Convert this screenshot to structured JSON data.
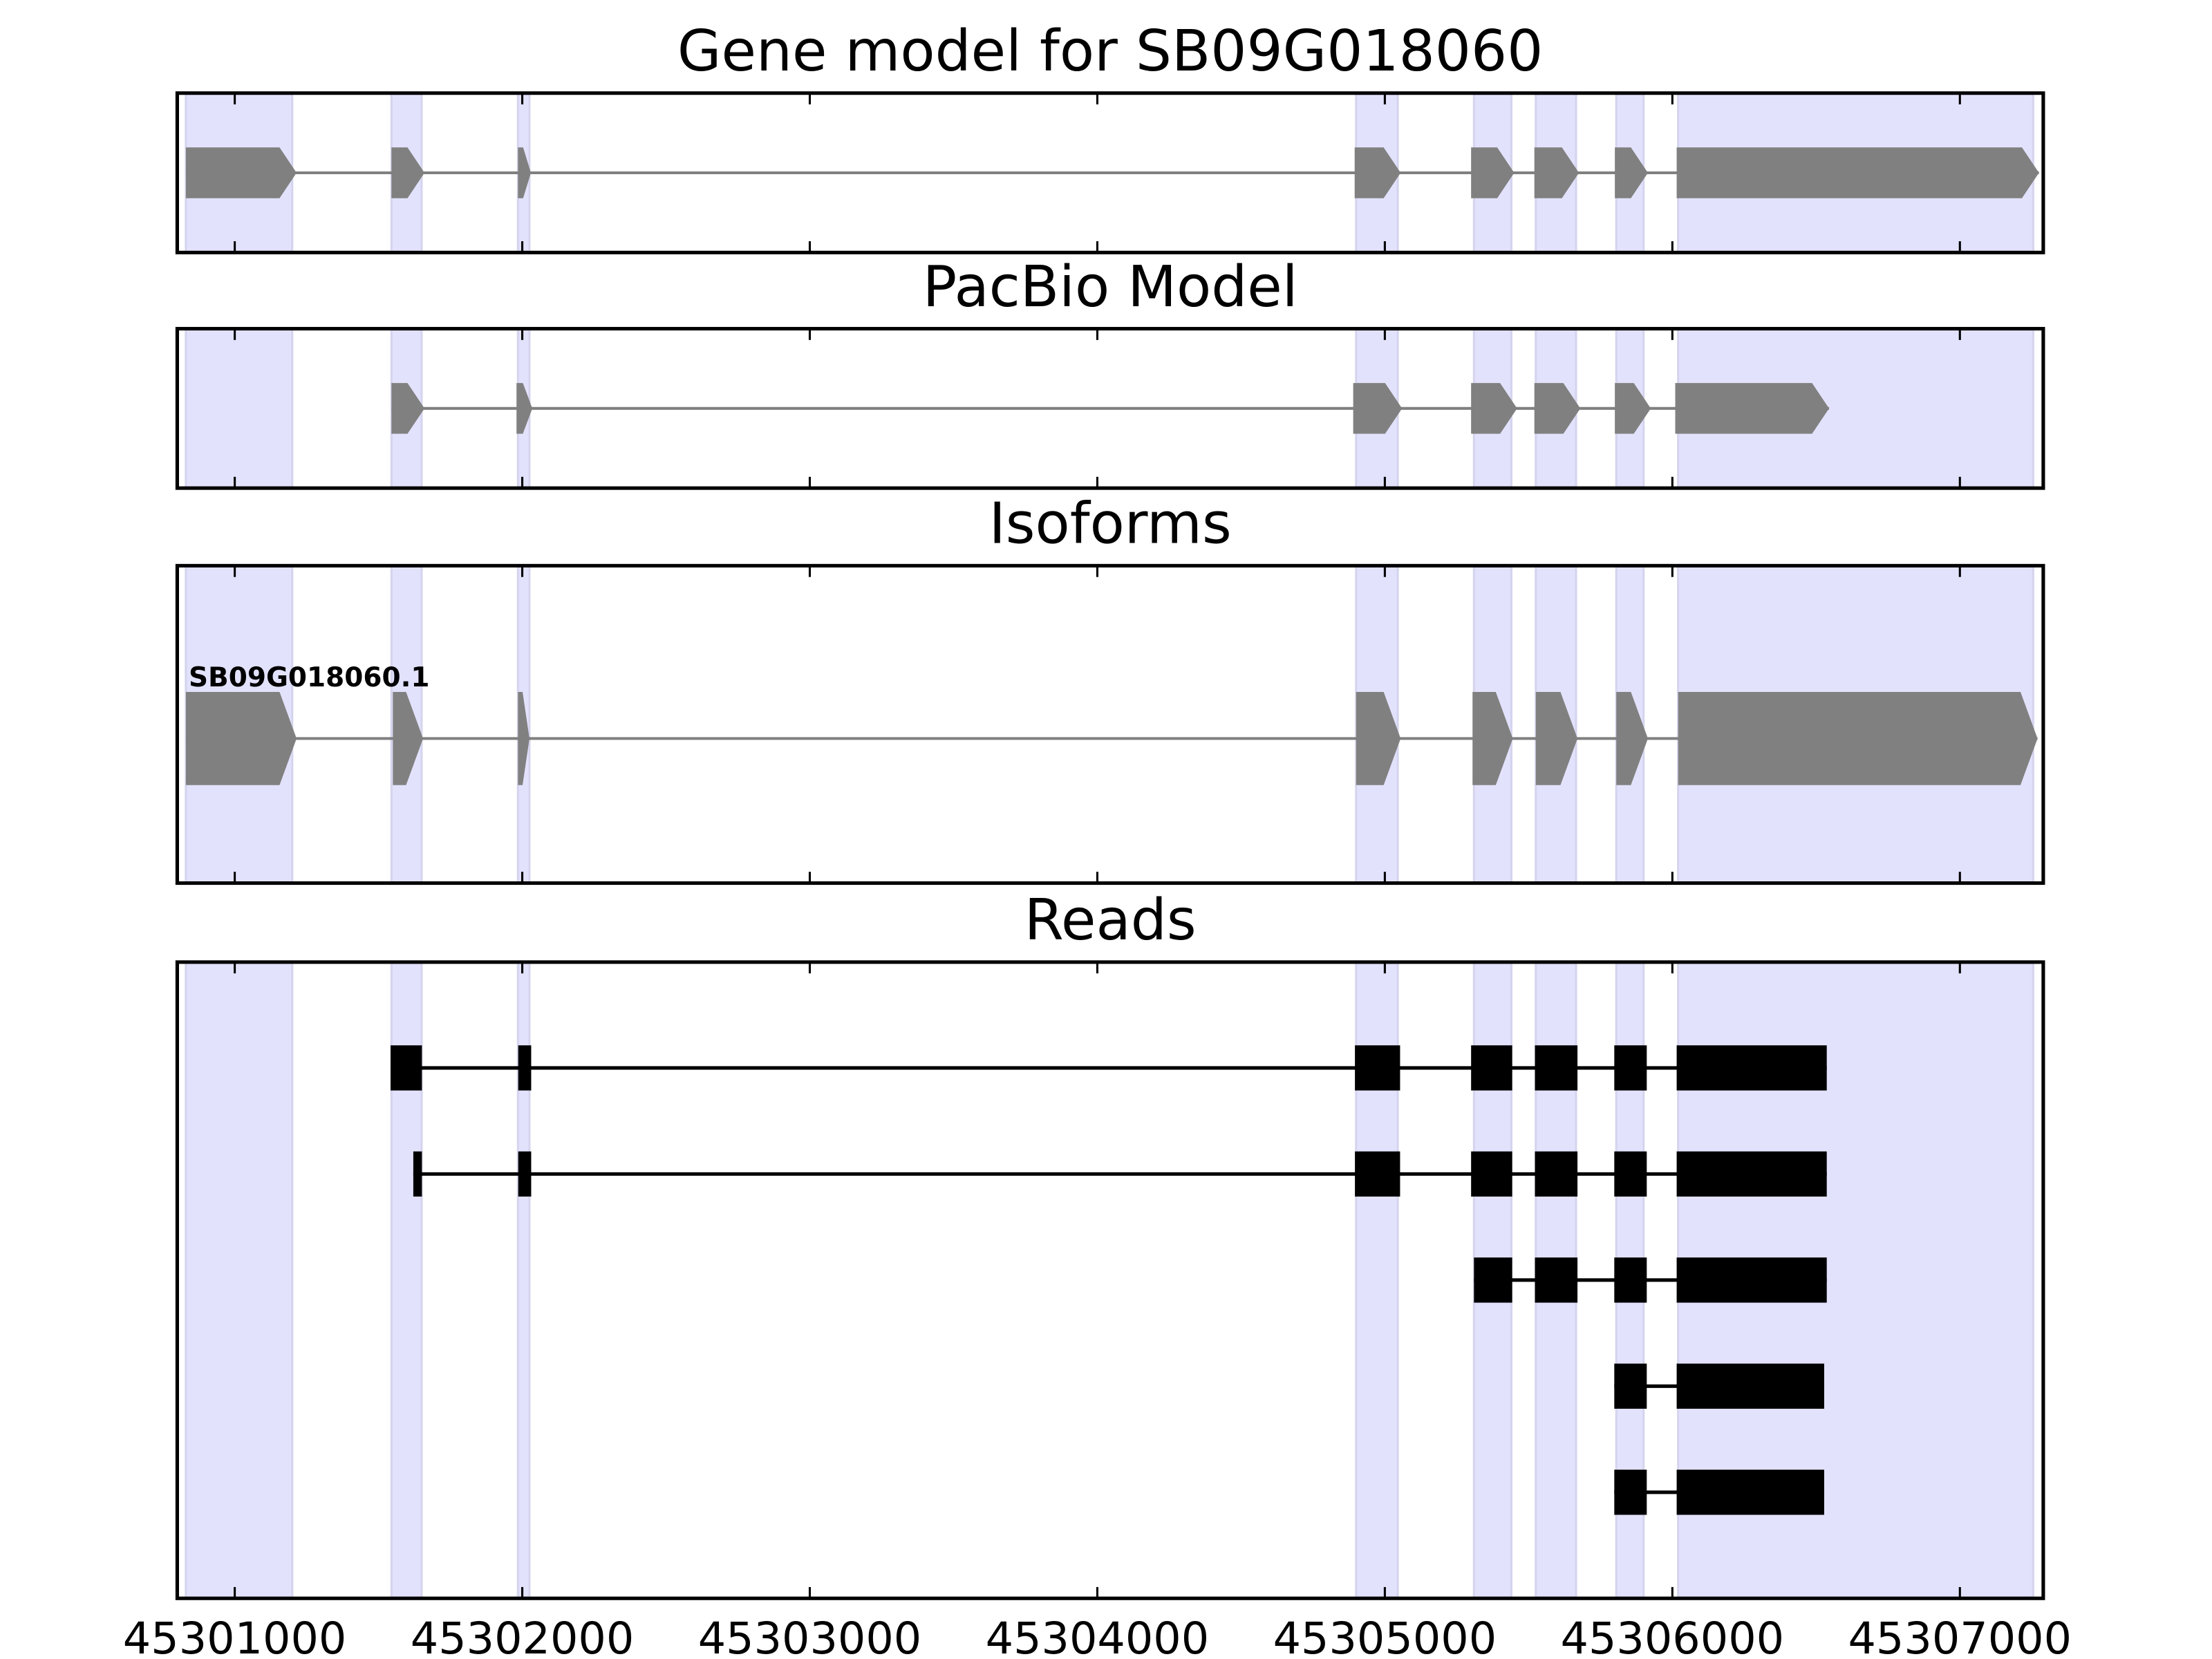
{
  "chart_data": {
    "type": "gene-structure",
    "xlim": [
      45300800,
      45307290
    ],
    "xticks": [
      45301000,
      45302000,
      45303000,
      45304000,
      45305000,
      45306000,
      45307000
    ],
    "xtick_labels": [
      "45301000",
      "45302000",
      "45303000",
      "45304000",
      "45305000",
      "45306000",
      "45307000"
    ],
    "colors": {
      "shade": "#e2e2fc",
      "shade_edge": "#d4d4ee",
      "model": "#808080",
      "read": "#000000"
    },
    "shaded_exons": [
      [
        45300830,
        45301200
      ],
      [
        45301545,
        45301650
      ],
      [
        45301985,
        45302025
      ],
      [
        45304900,
        45305045
      ],
      [
        45305310,
        45305440
      ],
      [
        45305525,
        45305665
      ],
      [
        45305805,
        45305900
      ],
      [
        45306020,
        45307255
      ]
    ],
    "panels": [
      {
        "title": "Gene model for SB09G018060",
        "style": "arrow",
        "tracks": [
          {
            "label": "",
            "exons": [
              [
                45300830,
                45301215
              ],
              [
                45301545,
                45301660
              ],
              [
                45301985,
                45302030
              ],
              [
                45304895,
                45305055
              ],
              [
                45305300,
                45305450
              ],
              [
                45305520,
                45305675
              ],
              [
                45305800,
                45305915
              ],
              [
                45306015,
                45307275
              ]
            ]
          }
        ]
      },
      {
        "title": "PacBio Model",
        "style": "arrow",
        "tracks": [
          {
            "label": "",
            "exons": [
              [
                45301545,
                45301660
              ],
              [
                45301980,
                45302035
              ],
              [
                45304890,
                45305060
              ],
              [
                45305300,
                45305460
              ],
              [
                45305520,
                45305680
              ],
              [
                45305800,
                45305925
              ],
              [
                45306010,
                45306545
              ]
            ]
          }
        ]
      },
      {
        "title": "Isoforms",
        "style": "arrow",
        "tracks": [
          {
            "label": "SB09G018060.1",
            "exons": [
              [
                45300830,
                45301215
              ],
              [
                45301550,
                45301655
              ],
              [
                45301985,
                45302025
              ],
              [
                45304900,
                45305055
              ],
              [
                45305305,
                45305445
              ],
              [
                45305525,
                45305670
              ],
              [
                45305805,
                45305915
              ],
              [
                45306020,
                45307270
              ]
            ]
          }
        ]
      },
      {
        "title": "Reads",
        "style": "box",
        "tracks": [
          {
            "label": "",
            "exons": [
              [
                45301542,
                45301651
              ],
              [
                45301986,
                45302031
              ],
              [
                45304896,
                45305053
              ],
              [
                45305300,
                45305443
              ],
              [
                45305522,
                45305670
              ],
              [
                45305798,
                45305911
              ],
              [
                45306015,
                45306537
              ]
            ]
          },
          {
            "label": "",
            "exons": [
              [
                45301621,
                45301651
              ],
              [
                45301986,
                45302031
              ],
              [
                45304896,
                45305053
              ],
              [
                45305300,
                45305443
              ],
              [
                45305522,
                45305670
              ],
              [
                45305798,
                45305911
              ],
              [
                45306015,
                45306537
              ]
            ]
          },
          {
            "label": "",
            "exons": [
              [
                45305310,
                45305443
              ],
              [
                45305522,
                45305670
              ],
              [
                45305798,
                45305911
              ],
              [
                45306015,
                45306537
              ]
            ]
          },
          {
            "label": "",
            "exons": [
              [
                45305798,
                45305911
              ],
              [
                45306015,
                45306528
              ]
            ]
          },
          {
            "label": "",
            "exons": [
              [
                45305798,
                45305911
              ],
              [
                45306015,
                45306528
              ]
            ]
          }
        ]
      }
    ]
  }
}
